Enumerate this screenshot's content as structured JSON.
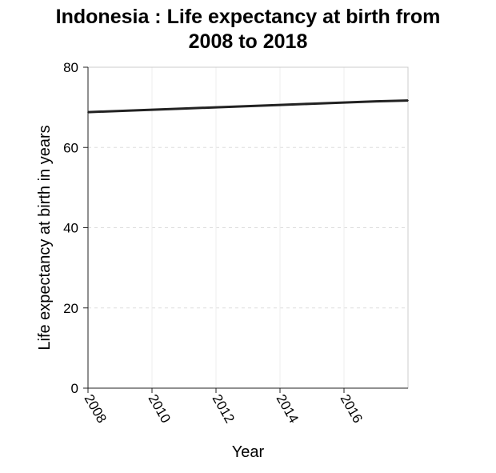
{
  "chart_data": {
    "type": "line",
    "title_lines": [
      "Indonesia : Life expectancy at birth from",
      "2008 to 2018"
    ],
    "xlabel": "Year",
    "ylabel": "Life expectancy at birth in years",
    "xlim": [
      2008,
      2018
    ],
    "ylim": [
      0,
      80
    ],
    "x_ticks": [
      "2008",
      "2010",
      "2012",
      "2014",
      "2016"
    ],
    "y_ticks": [
      "0",
      "20",
      "40",
      "60",
      "80"
    ],
    "grid": true,
    "line_color": "#222222",
    "series": [
      {
        "x": [
          2008,
          2009,
          2010,
          2011,
          2012,
          2013,
          2014,
          2015,
          2016,
          2017,
          2018
        ],
        "values": [
          68.8,
          69.1,
          69.4,
          69.7,
          70.0,
          70.3,
          70.6,
          70.9,
          71.2,
          71.5,
          71.7
        ]
      }
    ]
  }
}
